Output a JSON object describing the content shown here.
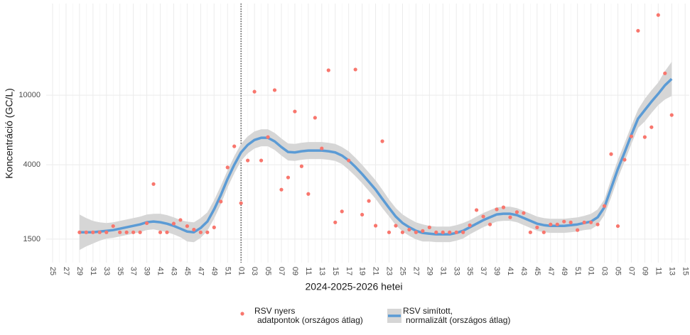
{
  "chart_data": {
    "type": "line",
    "x_label": "2024-2025-2026 hetei",
    "y_label": "Koncentráció (GC/L)",
    "y_log": true,
    "grid": true,
    "legend": "bottom",
    "ylim": [
      1100,
      33500
    ],
    "yticks": [
      1500,
      4000,
      10000
    ],
    "categories": [
      "25",
      null,
      "27",
      null,
      "29",
      null,
      "31",
      null,
      "33",
      null,
      "35",
      null,
      "37",
      null,
      "39",
      null,
      "41",
      null,
      "43",
      null,
      "45",
      null,
      "47",
      null,
      "49",
      null,
      "51",
      null,
      "01",
      null,
      "03",
      null,
      "05",
      null,
      "07",
      null,
      "09",
      null,
      "11",
      null,
      "13",
      null,
      "15",
      null,
      "17",
      null,
      "19",
      null,
      "21",
      null,
      "23",
      null,
      "25",
      null,
      "27",
      null,
      "29",
      null,
      "31",
      null,
      "33",
      null,
      "35",
      null,
      "37",
      null,
      "39",
      null,
      "41",
      null,
      "43",
      null,
      "45",
      null,
      "47",
      null,
      "49",
      null,
      "51",
      null,
      "01",
      null,
      "03",
      null,
      "05",
      null,
      "07",
      null,
      "09",
      null,
      "11",
      null,
      "13",
      null,
      "15"
    ],
    "series": [
      {
        "name": "RSV nyers\nadatpontok (országos átlag)",
        "kind": "points",
        "color": "#F8766D",
        "values": [
          null,
          null,
          null,
          null,
          1640,
          1640,
          1640,
          1640,
          1640,
          1780,
          1640,
          1640,
          1640,
          1640,
          1850,
          3100,
          1640,
          1640,
          1840,
          1930,
          1780,
          1700,
          1640,
          1640,
          1750,
          2460,
          3860,
          5100,
          2410,
          4230,
          10480,
          4230,
          5760,
          10700,
          2880,
          3380,
          8070,
          3920,
          2720,
          7430,
          4960,
          13900,
          1870,
          2160,
          4230,
          14040,
          2070,
          2480,
          1790,
          5450,
          1640,
          1790,
          1640,
          1700,
          1640,
          1670,
          1750,
          1640,
          1640,
          1640,
          1640,
          1640,
          1800,
          2200,
          2020,
          1820,
          2220,
          2280,
          2000,
          2140,
          2115,
          1640,
          1750,
          1640,
          1820,
          1820,
          1890,
          1870,
          1690,
          1870,
          1870,
          1820,
          2320,
          4600,
          1780,
          4270,
          5810,
          23400,
          5760,
          6560,
          28800,
          13350,
          7700,
          null,
          null
        ]
      },
      {
        "name": "RSV simított,\nnormalizált (országos átlag)",
        "kind": "smooth",
        "color": "#5B9BD5",
        "band_color": "#D6D6D6",
        "values": [
          null,
          null,
          null,
          null,
          1642,
          1642,
          1642,
          1657,
          1673,
          1689,
          1721,
          1753,
          1786,
          1820,
          1873,
          1890,
          1873,
          1838,
          1786,
          1721,
          1657,
          1642,
          1737,
          1890,
          2220,
          2680,
          3315,
          3996,
          4703,
          5195,
          5545,
          5704,
          5704,
          5440,
          5050,
          4730,
          4703,
          4775,
          4820,
          4820,
          4820,
          4775,
          4703,
          4514,
          4228,
          3886,
          3538,
          3193,
          2880,
          2550,
          2262,
          2018,
          1855,
          1753,
          1673,
          1627,
          1611,
          1597,
          1597,
          1597,
          1627,
          1673,
          1753,
          1838,
          1926,
          2000,
          2076,
          2095,
          2095,
          2056,
          1981,
          1908,
          1838,
          1803,
          1786,
          1786,
          1786,
          1803,
          1820,
          1855,
          1890,
          2000,
          2283,
          2934,
          3778,
          4703,
          5922,
          7340,
          8218,
          9193,
          10190,
          11400,
          12400,
          null,
          null
        ],
        "ci_upper": [
          null,
          null,
          null,
          null,
          2075,
          1980,
          1906,
          1871,
          1854,
          1871,
          1907,
          1942,
          1979,
          2017,
          2075,
          2094,
          2096,
          2057,
          1999,
          1926,
          1889,
          1872,
          1980,
          2134,
          2506,
          3026,
          3710,
          4472,
          5263,
          5813,
          6205,
          6383,
          6383,
          6087,
          5651,
          5293,
          5263,
          5343,
          5394,
          5394,
          5394,
          5343,
          5263,
          5051,
          4773,
          4387,
          3994,
          3605,
          3252,
          2879,
          2531,
          2258,
          2076,
          1962,
          1872,
          1821,
          1785,
          1769,
          1769,
          1769,
          1803,
          1854,
          1925,
          2018,
          2115,
          2196,
          2279,
          2300,
          2300,
          2257,
          2175,
          2095,
          2018,
          1980,
          1961,
          1961,
          1961,
          1980,
          1998,
          2037,
          2094,
          2216,
          2530,
          3312,
          4265,
          5310,
          6686,
          8287,
          9541,
          10673,
          11831,
          13748,
          15525,
          null,
          null
        ],
        "ci_lower": [
          null,
          null,
          null,
          null,
          1299,
          1362,
          1414,
          1468,
          1510,
          1524,
          1553,
          1582,
          1612,
          1643,
          1690,
          1706,
          1674,
          1643,
          1596,
          1538,
          1454,
          1440,
          1524,
          1674,
          1966,
          2374,
          2962,
          3571,
          4203,
          4642,
          4955,
          5097,
          5097,
          4862,
          4513,
          4227,
          4203,
          4267,
          4307,
          4307,
          4307,
          4267,
          4203,
          4034,
          3745,
          3442,
          3134,
          2828,
          2551,
          2259,
          2021,
          1803,
          1658,
          1567,
          1495,
          1454,
          1454,
          1441,
          1441,
          1441,
          1468,
          1510,
          1597,
          1674,
          1754,
          1821,
          1891,
          1908,
          1908,
          1873,
          1804,
          1738,
          1674,
          1642,
          1627,
          1627,
          1627,
          1642,
          1658,
          1690,
          1706,
          1805,
          2060,
          2599,
          3346,
          4166,
          5245,
          6501,
          7078,
          7918,
          8777,
          9453,
          9904,
          null,
          null
        ]
      }
    ]
  }
}
